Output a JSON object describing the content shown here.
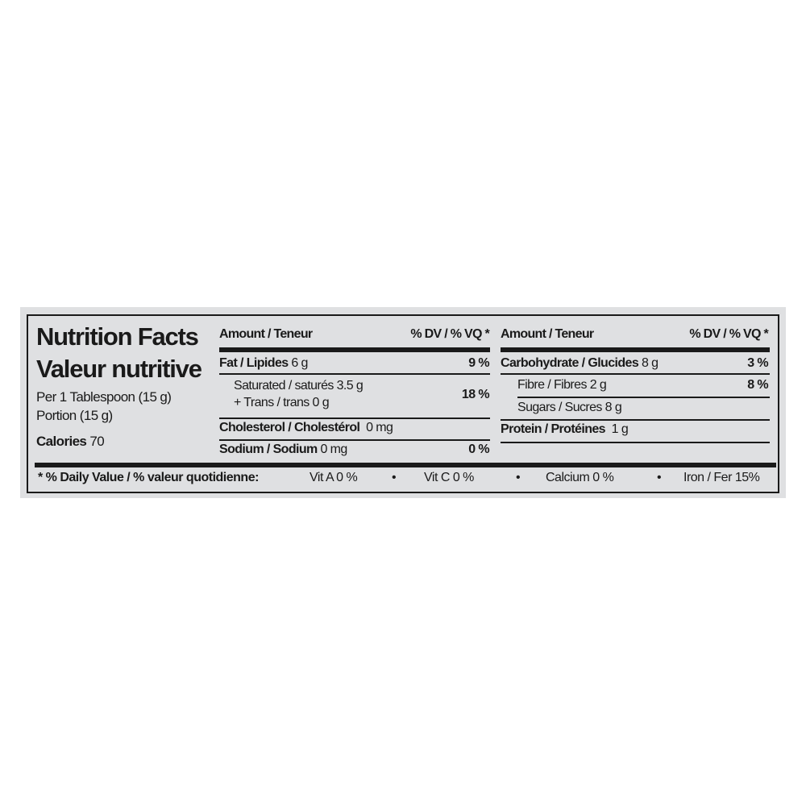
{
  "label": {
    "title_en": "Nutrition Facts",
    "title_fr": "Valeur nutritive",
    "serving_en": "Per 1 Tablespoon (15 g)",
    "serving_fr": "Portion (15 g)",
    "calories_label": "Calories",
    "calories_value": "70",
    "header_amount": "Amount / Teneur",
    "header_dv": "% DV / % VQ  *",
    "left_rows": [
      {
        "name": "Fat / Lipides",
        "amount": "6 g",
        "dv": "9 %"
      },
      {
        "name": "Saturated / saturés 3.5 g",
        "amount": "",
        "dv": "18 %"
      },
      {
        "name": "+ Trans / trans 0 g",
        "amount": "",
        "dv": ""
      },
      {
        "name": "Cholesterol / Cholestérol",
        "amount": "0 mg",
        "dv": ""
      },
      {
        "name": "Sodium / Sodium",
        "amount": "0 mg",
        "dv": "0 %"
      }
    ],
    "right_rows": [
      {
        "name": "Carbohydrate / Glucides",
        "amount": "8 g",
        "dv": "3 %"
      },
      {
        "name": "Fibre / Fibres 2 g",
        "amount": "",
        "dv": "8 %"
      },
      {
        "name": "Sugars / Sucres 8 g",
        "amount": "",
        "dv": ""
      },
      {
        "name": "Protein / Protéines",
        "amount": "1 g",
        "dv": ""
      }
    ],
    "footnote": {
      "label": "* % Daily Value / % valeur quotidienne:",
      "vit_a": "Vit A 0 %",
      "vit_c": "Vit C 0 %",
      "calcium": "Calcium 0 %",
      "iron": "Iron / Fer 15%",
      "bullet": "•"
    }
  }
}
